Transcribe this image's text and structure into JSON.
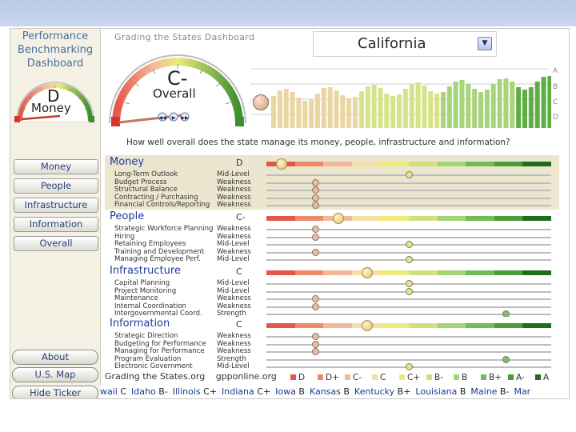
{
  "sidebar": {
    "title_lines": [
      "Performance",
      "Benchmarking",
      "Dashboard"
    ],
    "gauge_grade": "D",
    "gauge_label": "Money",
    "nav": [
      "Money",
      "People",
      "Infrastructure",
      "Information",
      "Overall"
    ],
    "bottom_buttons": [
      "About",
      "U.S. Map",
      "Hide Ticker"
    ]
  },
  "header": {
    "app_title": "Grading the States Dashboard",
    "overall_grade": "C-",
    "overall_label": "Overall",
    "state": "California",
    "scale": [
      "A",
      "B",
      "C",
      "D"
    ],
    "question": "How well overall does the state manage its money, people, infrastructure and information?"
  },
  "grade_scale": [
    "D",
    "D+",
    "C-",
    "C",
    "C+",
    "B-",
    "B",
    "B+",
    "A-",
    "A"
  ],
  "grade_colors": {
    "D": "#e3574a",
    "D+": "#ee8a67",
    "C-": "#f3b89b",
    "C": "#f2dfa6",
    "C+": "#eceb7a",
    "B-": "#cfe07d",
    "B": "#a6d37a",
    "B+": "#73bb56",
    "A-": "#4b9e37",
    "A": "#1f6e1e"
  },
  "value_colors": {
    "Weakness": "#f3b89b",
    "Mid-Level": "#e7e77a",
    "Strength": "#7fc05c"
  },
  "sections": [
    {
      "name": "Money",
      "grade": "D",
      "grade_index": 0,
      "rows": [
        {
          "label": "Long-Term Outlook",
          "value": "Mid-Level"
        },
        {
          "label": "Budget Process",
          "value": "Weakness"
        },
        {
          "label": "Structural Balance",
          "value": "Weakness"
        },
        {
          "label": "Contracting / Purchasing",
          "value": "Weakness"
        },
        {
          "label": "Financial Controls/Reporting",
          "value": "Weakness"
        }
      ]
    },
    {
      "name": "People",
      "grade": "C-",
      "grade_index": 2,
      "rows": [
        {
          "label": "Strategic Workforce Planning",
          "value": "Weakness"
        },
        {
          "label": "Hiring",
          "value": "Weakness"
        },
        {
          "label": "Retaining Employees",
          "value": "Mid-Level"
        },
        {
          "label": "Training and Development",
          "value": "Weakness"
        },
        {
          "label": "Managing Employee Perf.",
          "value": "Mid-Level"
        }
      ]
    },
    {
      "name": "Infrastructure",
      "grade": "C",
      "grade_index": 3,
      "rows": [
        {
          "label": "Capital Planning",
          "value": "Mid-Level"
        },
        {
          "label": "Project Monitoring",
          "value": "Mid-Level"
        },
        {
          "label": "Maintenance",
          "value": "Weakness"
        },
        {
          "label": "Internal Coordination",
          "value": "Weakness"
        },
        {
          "label": "Intergovernmental Coord.",
          "value": "Strength"
        }
      ]
    },
    {
      "name": "Information",
      "grade": "C",
      "grade_index": 3,
      "rows": [
        {
          "label": "Strategic Direction",
          "value": "Weakness"
        },
        {
          "label": "Budgeting for Performance",
          "value": "Weakness"
        },
        {
          "label": "Managing for Performance",
          "value": "Weakness"
        },
        {
          "label": "Program Evaluation",
          "value": "Strength"
        },
        {
          "label": "Electronic Government",
          "value": "Mid-Level"
        }
      ]
    }
  ],
  "footer": {
    "left": "Grading the States.org",
    "right": "gpponline.org"
  },
  "ticker": [
    {
      "state": "waii",
      "grade": "C"
    },
    {
      "state": "Idaho",
      "grade": "B-"
    },
    {
      "state": "Illinois",
      "grade": "C+"
    },
    {
      "state": "Indiana",
      "grade": "C+"
    },
    {
      "state": "Iowa",
      "grade": "B"
    },
    {
      "state": "Kansas",
      "grade": "B"
    },
    {
      "state": "Kentucky",
      "grade": "B+"
    },
    {
      "state": "Louisiana",
      "grade": "B"
    },
    {
      "state": "Maine",
      "grade": "B-"
    },
    {
      "state": "Mar",
      "grade": ""
    }
  ]
}
